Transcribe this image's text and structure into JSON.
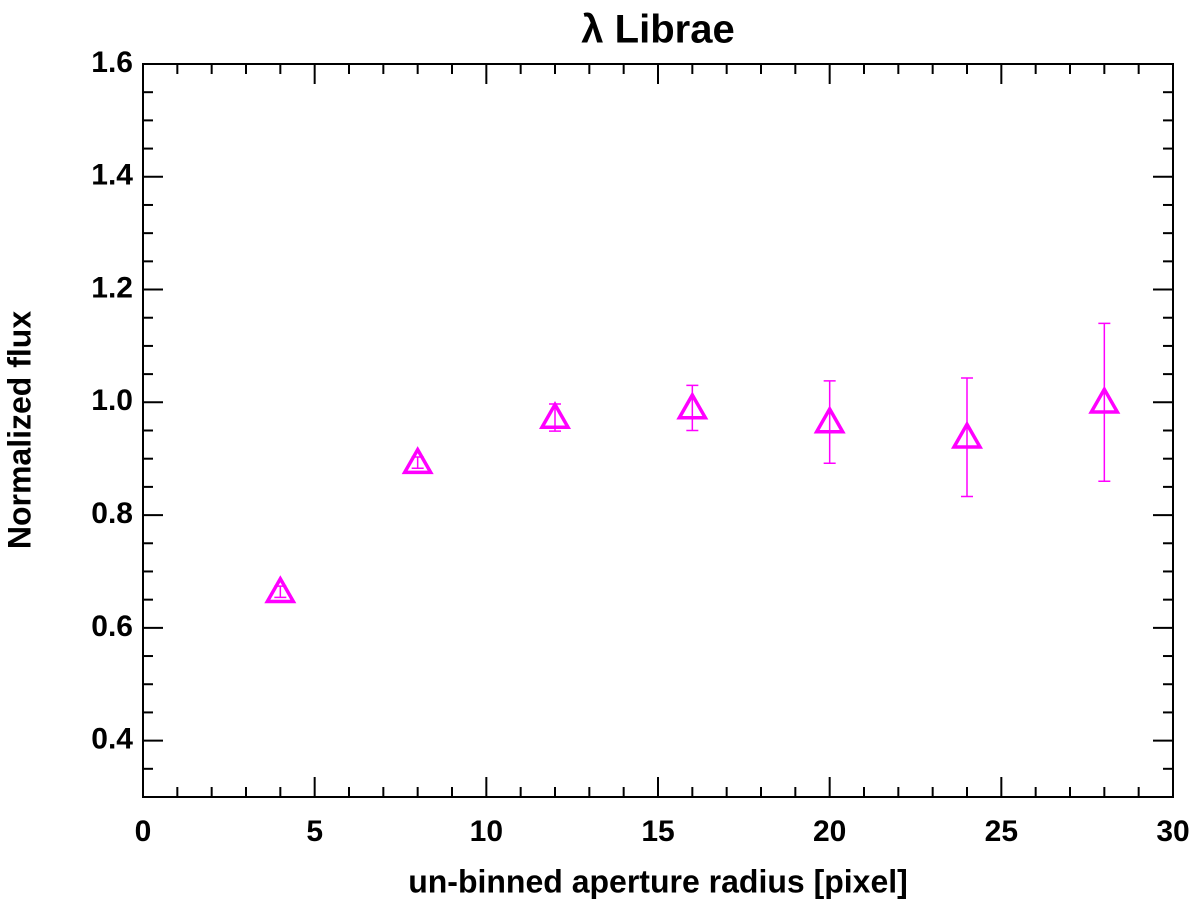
{
  "chart_data": {
    "type": "scatter",
    "title": "λ Librae",
    "x_label": "un-binned aperture radius [pixel]",
    "y_label": "Normalized flux",
    "x": [
      4,
      8,
      12,
      16,
      20,
      24,
      28
    ],
    "y": [
      0.664,
      0.893,
      0.973,
      0.99,
      0.965,
      0.938,
      1.0
    ],
    "yerr": [
      0.01,
      0.01,
      0.024,
      0.04,
      0.073,
      0.105,
      0.14
    ],
    "color": "#ff00ff",
    "marker": "triangle-open",
    "xlim": [
      0,
      30
    ],
    "xticks": [
      0,
      5,
      10,
      15,
      20,
      25,
      30
    ],
    "x_minor": 5,
    "ylim": [
      0.3,
      1.6
    ],
    "yticks": [
      0.4,
      0.6,
      0.8,
      {
        "value": 1,
        "label": "1.0"
      },
      1.2,
      1.4,
      1.6
    ],
    "y_minor": 4,
    "mirror_ticks": true
  }
}
